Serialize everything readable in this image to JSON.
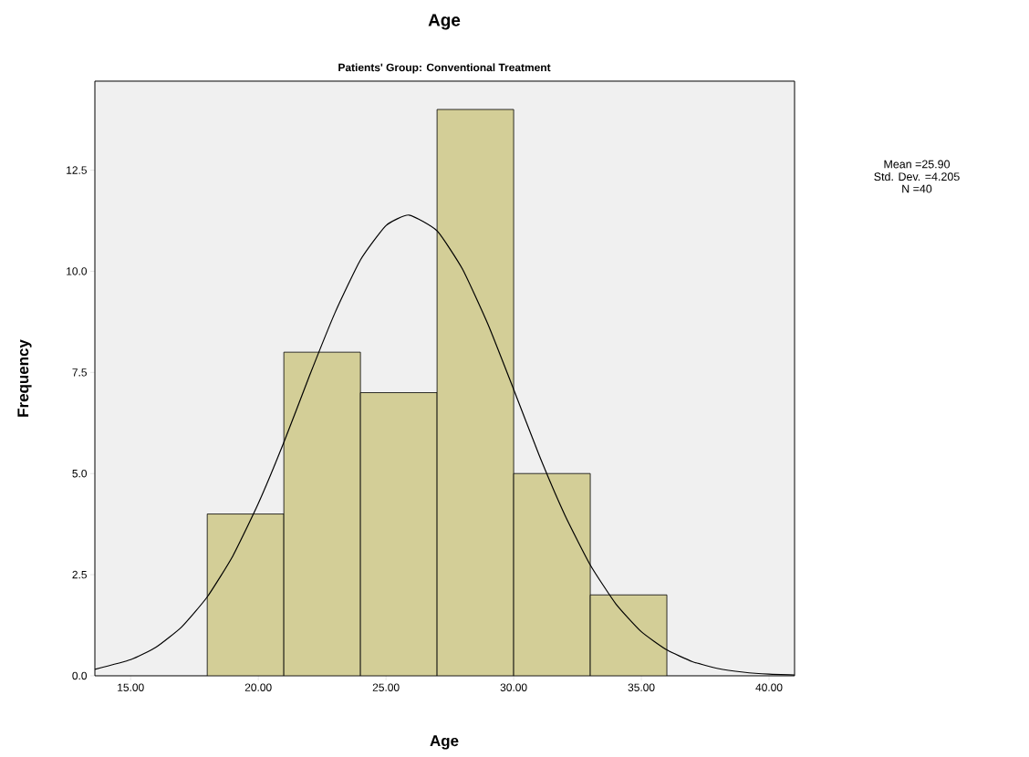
{
  "chart_data": {
    "type": "histogram",
    "title": "Age",
    "subtitle": "Patients' Group: Conventional Treatment",
    "xlabel": "Age",
    "ylabel": "Frequency",
    "bins": [
      18,
      21,
      24,
      27,
      30,
      33,
      36
    ],
    "values": [
      4,
      8,
      7,
      14,
      5,
      2
    ],
    "color": "#d3ce97",
    "series": [
      {
        "type": "line",
        "color": "#000000",
        "x": [
          13.6,
          15,
          16,
          17,
          18,
          19,
          20,
          21,
          22,
          23,
          24,
          25,
          25.9,
          27,
          28,
          29,
          30,
          31,
          32,
          33,
          34,
          35,
          36,
          37,
          38,
          39,
          40,
          41
        ],
        "values": [
          0.16,
          0.4,
          0.71,
          1.21,
          1.95,
          2.96,
          4.26,
          5.77,
          7.41,
          8.97,
          10.28,
          11.13,
          11.39,
          11.0,
          10.05,
          8.68,
          7.08,
          5.45,
          3.98,
          2.74,
          1.78,
          1.09,
          0.64,
          0.35,
          0.18,
          0.09,
          0.04,
          0.02
        ]
      }
    ],
    "xlim": [
      13.6,
      41
    ],
    "ylim": [
      0,
      14.7
    ],
    "xticks": [
      {
        "value": 15,
        "label": "15.00"
      },
      {
        "value": 20,
        "label": "20.00"
      },
      {
        "value": 25,
        "label": "25.00"
      },
      {
        "value": 30,
        "label": "30.00"
      },
      {
        "value": 35,
        "label": "35.00"
      },
      {
        "value": 40,
        "label": "40.00"
      }
    ],
    "yticks": [
      {
        "value": 0,
        "label": "0.0"
      },
      {
        "value": 2.5,
        "label": "2.5"
      },
      {
        "value": 5,
        "label": "5.0"
      },
      {
        "value": 7.5,
        "label": "7.5"
      },
      {
        "value": 10,
        "label": "10.0"
      },
      {
        "value": 12.5,
        "label": "12.5"
      }
    ],
    "grid": false,
    "annotations": [
      "Mean =25.90",
      "Std. Dev. =4.205",
      "N =40"
    ]
  }
}
